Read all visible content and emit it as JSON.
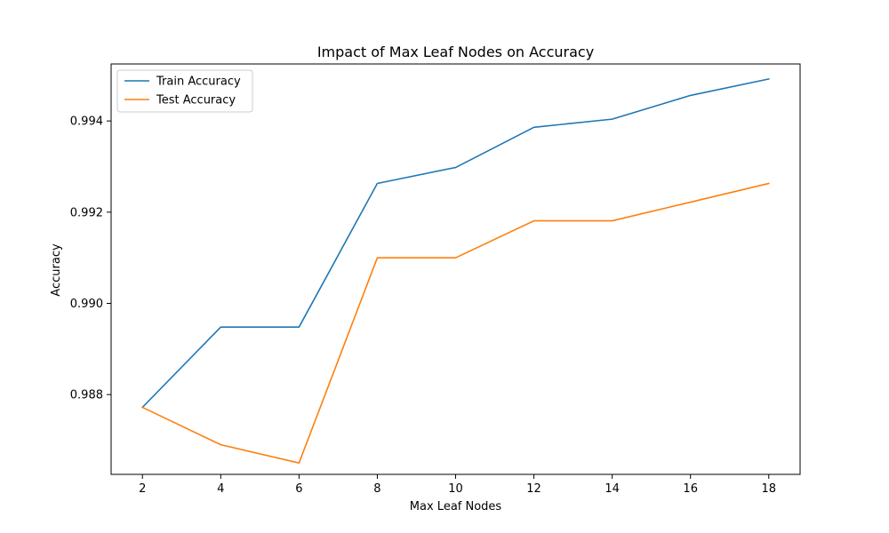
{
  "chart_data": {
    "type": "line",
    "title": "Impact of Max Leaf Nodes on Accuracy",
    "xlabel": "Max Leaf Nodes",
    "ylabel": "Accuracy",
    "x": [
      2,
      4,
      6,
      8,
      10,
      12,
      14,
      16,
      18
    ],
    "xlim": [
      1.2,
      18.8
    ],
    "ylim": [
      0.98625,
      0.99525
    ],
    "xticks": [
      2,
      4,
      6,
      8,
      10,
      12,
      14,
      16,
      18
    ],
    "yticks": [
      0.988,
      0.99,
      0.992,
      0.994
    ],
    "ytick_labels": [
      "0.988",
      "0.990",
      "0.992",
      "0.994"
    ],
    "grid": false,
    "legend_position": "upper-left",
    "series": [
      {
        "name": "Train Accuracy",
        "color": "#1f77b4",
        "values": [
          0.98772,
          0.98948,
          0.98948,
          0.99263,
          0.99298,
          0.99386,
          0.99404,
          0.99456,
          0.99492
        ]
      },
      {
        "name": "Test Accuracy",
        "color": "#ff7f0e",
        "values": [
          0.98772,
          0.9869,
          0.9865,
          0.991,
          0.991,
          0.99181,
          0.99181,
          0.99222,
          0.99263
        ]
      }
    ]
  }
}
